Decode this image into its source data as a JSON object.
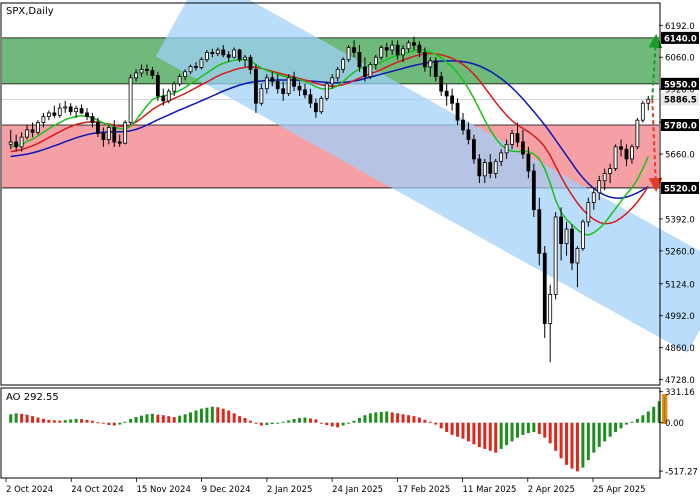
{
  "chart_data": [
    {
      "type": "candlestick",
      "title": "SPX,Daily",
      "ylim": [
        4710,
        6280
      ],
      "yticks": [
        4728.0,
        4860.0,
        4992.0,
        5124.0,
        5260.0,
        5392.0,
        5524.0,
        5660.0,
        5792.0,
        5928.0,
        6060.0,
        6192.0
      ],
      "level_labels": {
        "green_top": "6140.0",
        "green_bottom": "5950.0",
        "red_top": "5780.0",
        "red_bottom": "5520.0",
        "last_price": "5886.5"
      },
      "zones": [
        {
          "name": "resistance-zone",
          "from": 5950,
          "to": 6140,
          "color": "#6fba7a"
        },
        {
          "name": "support-zone",
          "from": 5520,
          "to": 5780,
          "color": "#f4a0a4"
        }
      ],
      "channel": {
        "color": "#9fd0fb",
        "start_x": "2 Dec 2024",
        "start_y": 6235,
        "end_x": "19 May 2025",
        "end_y": 5010,
        "width": 95
      },
      "forecast_arrows": [
        {
          "direction": "up",
          "target": 6140,
          "color": "#1a9a2a"
        },
        {
          "direction": "down",
          "target": 5520,
          "color": "#e53b2a"
        }
      ],
      "candles": [
        [
          5700,
          5760,
          5680,
          5710
        ],
        [
          5710,
          5740,
          5670,
          5690
        ],
        [
          5690,
          5750,
          5670,
          5730
        ],
        [
          5730,
          5780,
          5720,
          5760
        ],
        [
          5760,
          5790,
          5730,
          5750
        ],
        [
          5750,
          5800,
          5740,
          5790
        ],
        [
          5790,
          5830,
          5770,
          5815
        ],
        [
          5815,
          5840,
          5800,
          5830
        ],
        [
          5830,
          5860,
          5810,
          5820
        ],
        [
          5820,
          5870,
          5810,
          5850
        ],
        [
          5850,
          5880,
          5830,
          5855
        ],
        [
          5855,
          5870,
          5820,
          5835
        ],
        [
          5835,
          5860,
          5810,
          5848
        ],
        [
          5848,
          5865,
          5825,
          5830
        ],
        [
          5830,
          5850,
          5800,
          5815
        ],
        [
          5815,
          5830,
          5770,
          5790
        ],
        [
          5790,
          5810,
          5730,
          5745
        ],
        [
          5745,
          5770,
          5690,
          5720
        ],
        [
          5720,
          5780,
          5700,
          5770
        ],
        [
          5770,
          5800,
          5690,
          5710
        ],
        [
          5710,
          5740,
          5690,
          5705
        ],
        [
          5705,
          5800,
          5700,
          5790
        ],
        [
          5790,
          5990,
          5780,
          5975
        ],
        [
          5975,
          6010,
          5960,
          5995
        ],
        [
          5995,
          6030,
          5980,
          6010
        ],
        [
          6010,
          6030,
          5985,
          6005
        ],
        [
          6005,
          6020,
          5970,
          5985
        ],
        [
          5985,
          6000,
          5880,
          5900
        ],
        [
          5900,
          5930,
          5860,
          5880
        ],
        [
          5880,
          5930,
          5870,
          5920
        ],
        [
          5920,
          5960,
          5900,
          5950
        ],
        [
          5950,
          5990,
          5940,
          5980
        ],
        [
          5980,
          6010,
          5965,
          6000
        ],
        [
          6000,
          6030,
          5990,
          6022
        ],
        [
          6022,
          6040,
          6005,
          6018
        ],
        [
          6018,
          6060,
          6010,
          6050
        ],
        [
          6050,
          6090,
          6040,
          6080
        ],
        [
          6080,
          6095,
          6060,
          6075
        ],
        [
          6075,
          6100,
          6065,
          6090
        ],
        [
          6090,
          6110,
          6060,
          6070
        ],
        [
          6070,
          6085,
          6040,
          6060
        ],
        [
          6060,
          6100,
          6055,
          6090
        ],
        [
          6090,
          6095,
          6040,
          6050
        ],
        [
          6050,
          6070,
          6020,
          6060
        ],
        [
          6060,
          6070,
          5990,
          6010
        ],
        [
          6010,
          6030,
          5830,
          5870
        ],
        [
          5870,
          5950,
          5860,
          5930
        ],
        [
          5930,
          5990,
          5910,
          5975
        ],
        [
          5975,
          6000,
          5940,
          5960
        ],
        [
          5960,
          5990,
          5910,
          5930
        ],
        [
          5930,
          5960,
          5880,
          5910
        ],
        [
          5910,
          5990,
          5900,
          5975
        ],
        [
          5975,
          6000,
          5920,
          5940
        ],
        [
          5940,
          5960,
          5900,
          5925
        ],
        [
          5925,
          5950,
          5890,
          5905
        ],
        [
          5905,
          5930,
          5850,
          5870
        ],
        [
          5870,
          5890,
          5810,
          5835
        ],
        [
          5835,
          5900,
          5825,
          5890
        ],
        [
          5890,
          5960,
          5880,
          5950
        ],
        [
          5950,
          5990,
          5930,
          5975
        ],
        [
          5975,
          6020,
          5960,
          6010
        ],
        [
          6010,
          6060,
          5995,
          6050
        ],
        [
          6050,
          6110,
          6040,
          6100
        ],
        [
          6100,
          6130,
          6060,
          6080
        ],
        [
          6080,
          6110,
          6000,
          6020
        ],
        [
          6020,
          6060,
          5960,
          5980
        ],
        [
          5980,
          6040,
          5970,
          6030
        ],
        [
          6030,
          6070,
          6010,
          6060
        ],
        [
          6060,
          6110,
          6050,
          6100
        ],
        [
          6100,
          6120,
          6060,
          6090
        ],
        [
          6090,
          6130,
          6070,
          6110
        ],
        [
          6110,
          6130,
          6050,
          6070
        ],
        [
          6070,
          6110,
          6040,
          6095
        ],
        [
          6095,
          6130,
          6080,
          6120
        ],
        [
          6120,
          6145,
          6090,
          6110
        ],
        [
          6110,
          6125,
          6060,
          6080
        ],
        [
          6080,
          6100,
          6000,
          6020
        ],
        [
          6020,
          6060,
          5980,
          6045
        ],
        [
          6045,
          6060,
          5960,
          5980
        ],
        [
          5980,
          6000,
          5900,
          5920
        ],
        [
          5920,
          5950,
          5860,
          5900
        ],
        [
          5900,
          5930,
          5840,
          5870
        ],
        [
          5870,
          5890,
          5780,
          5800
        ],
        [
          5800,
          5830,
          5740,
          5760
        ],
        [
          5760,
          5790,
          5700,
          5720
        ],
        [
          5720,
          5740,
          5620,
          5640
        ],
        [
          5640,
          5660,
          5540,
          5570
        ],
        [
          5570,
          5640,
          5540,
          5625
        ],
        [
          5625,
          5660,
          5560,
          5580
        ],
        [
          5580,
          5640,
          5560,
          5630
        ],
        [
          5630,
          5680,
          5610,
          5665
        ],
        [
          5665,
          5720,
          5640,
          5700
        ],
        [
          5700,
          5760,
          5680,
          5745
        ],
        [
          5745,
          5790,
          5690,
          5710
        ],
        [
          5710,
          5760,
          5640,
          5660
        ],
        [
          5660,
          5690,
          5560,
          5590
        ],
        [
          5590,
          5620,
          5400,
          5430
        ],
        [
          5430,
          5480,
          5200,
          5250
        ],
        [
          5250,
          5280,
          4900,
          4960
        ],
        [
          4960,
          5120,
          4800,
          5080
        ],
        [
          5080,
          5420,
          5060,
          5400
        ],
        [
          5400,
          5440,
          5220,
          5290
        ],
        [
          5290,
          5380,
          5240,
          5350
        ],
        [
          5350,
          5370,
          5180,
          5210
        ],
        [
          5210,
          5280,
          5110,
          5270
        ],
        [
          5270,
          5390,
          5260,
          5380
        ],
        [
          5380,
          5480,
          5360,
          5460
        ],
        [
          5460,
          5520,
          5430,
          5500
        ],
        [
          5500,
          5570,
          5470,
          5550
        ],
        [
          5550,
          5600,
          5510,
          5580
        ],
        [
          5580,
          5620,
          5540,
          5600
        ],
        [
          5600,
          5700,
          5590,
          5690
        ],
        [
          5690,
          5720,
          5650,
          5680
        ],
        [
          5680,
          5700,
          5610,
          5640
        ],
        [
          5640,
          5700,
          5620,
          5690
        ],
        [
          5690,
          5810,
          5680,
          5800
        ],
        [
          5800,
          5880,
          5790,
          5870
        ],
        [
          5870,
          5900,
          5840,
          5886.5
        ]
      ],
      "ma_green": [
        5690,
        5695,
        5700,
        5712,
        5722,
        5735,
        5750,
        5765,
        5778,
        5790,
        5802,
        5810,
        5815,
        5818,
        5816,
        5810,
        5800,
        5788,
        5780,
        5772,
        5765,
        5762,
        5775,
        5800,
        5830,
        5860,
        5885,
        5895,
        5900,
        5905,
        5912,
        5922,
        5935,
        5950,
        5965,
        5980,
        5995,
        6010,
        6025,
        6035,
        6042,
        6048,
        6050,
        6050,
        6045,
        6030,
        6015,
        6005,
        5998,
        5990,
        5982,
        5978,
        5975,
        5968,
        5960,
        5950,
        5938,
        5930,
        5928,
        5932,
        5942,
        5960,
        5980,
        5998,
        6012,
        6020,
        6025,
        6032,
        6040,
        6050,
        6060,
        6068,
        6074,
        6080,
        6088,
        6092,
        6090,
        6082,
        6072,
        6058,
        6040,
        6020,
        5995,
        5965,
        5930,
        5890,
        5845,
        5800,
        5760,
        5725,
        5698,
        5680,
        5672,
        5670,
        5672,
        5670,
        5660,
        5640,
        5600,
        5540,
        5470,
        5420,
        5390,
        5368,
        5348,
        5330,
        5325,
        5335,
        5352,
        5375,
        5405,
        5435,
        5465,
        5495,
        5520,
        5555,
        5600,
        5650
      ],
      "ma_red": [
        5670,
        5674,
        5678,
        5686,
        5694,
        5704,
        5716,
        5728,
        5740,
        5752,
        5764,
        5774,
        5782,
        5788,
        5792,
        5794,
        5792,
        5788,
        5784,
        5780,
        5776,
        5774,
        5780,
        5792,
        5808,
        5826,
        5844,
        5858,
        5870,
        5880,
        5890,
        5900,
        5910,
        5922,
        5934,
        5946,
        5958,
        5970,
        5982,
        5992,
        6000,
        6008,
        6014,
        6018,
        6020,
        6018,
        6014,
        6008,
        6002,
        5996,
        5990,
        5984,
        5978,
        5972,
        5966,
        5960,
        5952,
        5946,
        5942,
        5940,
        5942,
        5946,
        5954,
        5964,
        5974,
        5984,
        5992,
        6000,
        6010,
        6020,
        6030,
        6040,
        6048,
        6056,
        6064,
        6070,
        6074,
        6076,
        6074,
        6070,
        6064,
        6056,
        6044,
        6030,
        6012,
        5990,
        5964,
        5934,
        5904,
        5874,
        5846,
        5820,
        5798,
        5780,
        5766,
        5752,
        5736,
        5716,
        5690,
        5654,
        5610,
        5566,
        5526,
        5490,
        5458,
        5430,
        5408,
        5390,
        5378,
        5372,
        5374,
        5382,
        5396,
        5414,
        5436,
        5462,
        5492,
        5526
      ],
      "ma_blue": [
        5650,
        5653,
        5656,
        5660,
        5665,
        5671,
        5678,
        5686,
        5694,
        5702,
        5711,
        5719,
        5727,
        5734,
        5740,
        5745,
        5748,
        5750,
        5751,
        5752,
        5752,
        5753,
        5756,
        5762,
        5770,
        5780,
        5791,
        5802,
        5812,
        5822,
        5832,
        5842,
        5851,
        5861,
        5870,
        5880,
        5890,
        5900,
        5910,
        5920,
        5929,
        5937,
        5945,
        5951,
        5956,
        5960,
        5962,
        5964,
        5965,
        5966,
        5966,
        5966,
        5966,
        5965,
        5964,
        5962,
        5960,
        5958,
        5956,
        5955,
        5955,
        5956,
        5958,
        5962,
        5966,
        5972,
        5978,
        5984,
        5990,
        5996,
        6002,
        6008,
        6014,
        6020,
        6026,
        6031,
        6035,
        6039,
        6042,
        6044,
        6045,
        6045,
        6044,
        6042,
        6038,
        6032,
        6024,
        6014,
        6002,
        5988,
        5972,
        5954,
        5934,
        5912,
        5888,
        5862,
        5836,
        5808,
        5780,
        5750,
        5718,
        5686,
        5654,
        5622,
        5590,
        5562,
        5538,
        5518,
        5502,
        5490,
        5482,
        5478,
        5478,
        5482,
        5490,
        5500,
        5512,
        5526
      ]
    },
    {
      "type": "bar",
      "title": "AO 292.55",
      "ylim": [
        -580,
        360
      ],
      "yticks": [
        -517.27,
        0.0,
        331.16
      ],
      "colors": {
        "up": "#1e8e1e",
        "down": "#e0251b",
        "highlight": "#e38a17"
      },
      "values": [
        90,
        100,
        95,
        85,
        70,
        55,
        40,
        30,
        25,
        22,
        28,
        35,
        40,
        38,
        30,
        20,
        5,
        -10,
        -25,
        -30,
        -20,
        10,
        40,
        60,
        75,
        90,
        95,
        85,
        80,
        70,
        60,
        75,
        90,
        110,
        130,
        150,
        160,
        170,
        165,
        150,
        130,
        100,
        70,
        50,
        20,
        -10,
        -30,
        -25,
        -15,
        -5,
        10,
        25,
        40,
        50,
        55,
        45,
        35,
        -10,
        -25,
        -40,
        -50,
        -30,
        -10,
        20,
        50,
        80,
        100,
        110,
        115,
        120,
        110,
        100,
        90,
        80,
        70,
        55,
        30,
        10,
        -20,
        -60,
        -100,
        -130,
        -150,
        -170,
        -200,
        -230,
        -260,
        -280,
        -300,
        -320,
        -280,
        -240,
        -200,
        -160,
        -130,
        -110,
        -100,
        -120,
        -160,
        -220,
        -300,
        -380,
        -450,
        -490,
        -520,
        -480,
        -400,
        -320,
        -260,
        -200,
        -150,
        -100,
        -60,
        -20,
        10,
        40,
        80,
        120,
        170,
        230,
        292.55
      ]
    }
  ],
  "x_labels": [
    "2 Oct 2024",
    "24 Oct 2024",
    "15 Nov 2024",
    "9 Dec 2024",
    "2 Jan 2025",
    "24 Jan 2025",
    "17 Feb 2025",
    "11 Mar 2025",
    "2 Apr 2025",
    "25 Apr 2025"
  ],
  "colors": {
    "bull": "#0b1a0b",
    "bear": "#0b1a0b",
    "ma_green": "#18c318",
    "ma_red": "#d71a1a",
    "ma_blue": "#0c14b8",
    "grid": "#c8c8c8",
    "label_bg_dark": "#000000",
    "axis_text": "#000000"
  }
}
